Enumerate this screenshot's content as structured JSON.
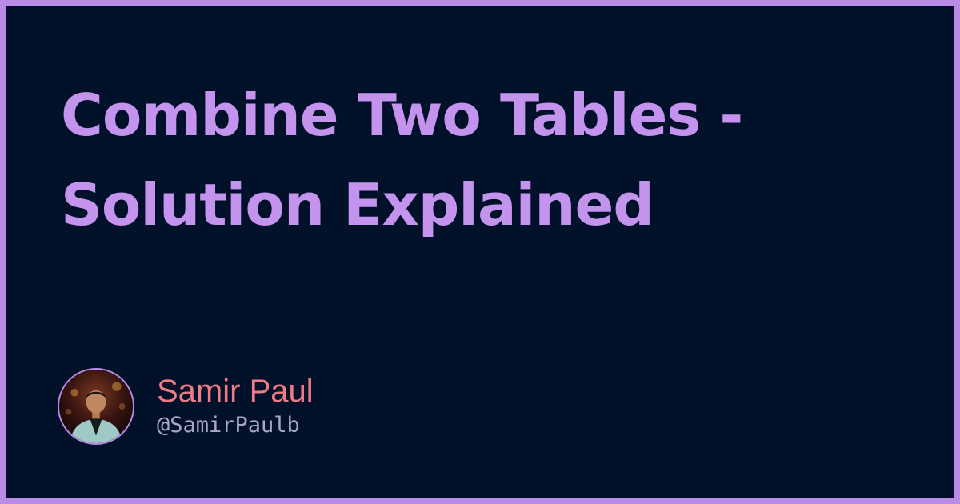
{
  "title": "Combine Two Tables - Solution Explained",
  "author": {
    "name": "Samir Paul",
    "handle": "@SamirPaulb",
    "avatar_icon": "profile-photo"
  },
  "colors": {
    "frame": "#b98be6",
    "background": "#01112a",
    "title": "#c493ee",
    "name": "#f07b86",
    "handle": "#a8aac2"
  }
}
